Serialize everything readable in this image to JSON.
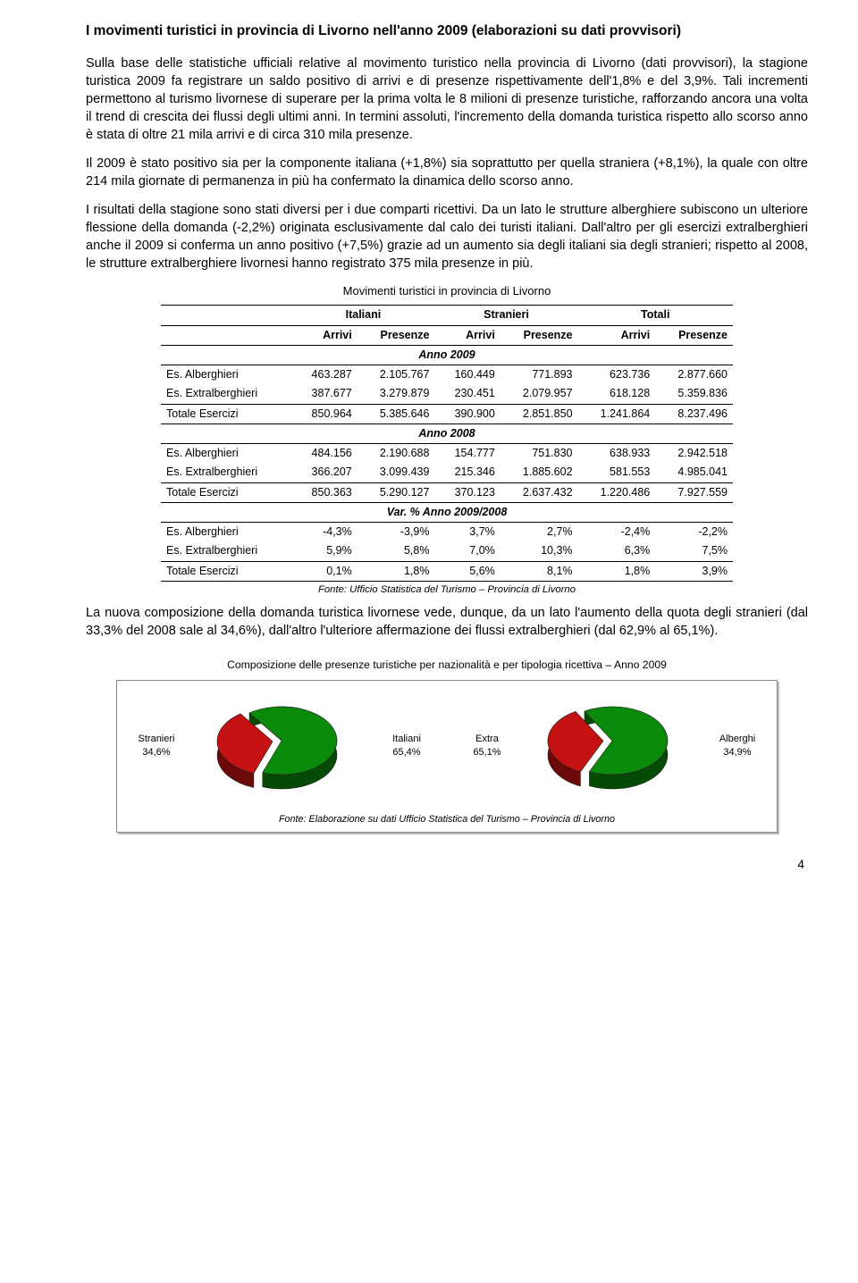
{
  "title": "I movimenti turistici in provincia di Livorno nell'anno 2009 (elaborazioni su dati provvisori)",
  "paragraphs": {
    "p1": "Sulla base delle statistiche ufficiali relative al movimento turistico nella provincia di Livorno (dati provvisori), la stagione turistica 2009 fa registrare un saldo positivo di arrivi e di presenze rispettivamente dell'1,8% e del 3,9%. Tali incrementi permettono al turismo livornese di superare per la prima volta le 8 milioni di presenze turistiche, rafforzando ancora una volta il trend di crescita dei flussi degli ultimi anni. In termini assoluti, l'incremento della domanda turistica rispetto allo scorso anno è stata di oltre 21 mila arrivi e di circa 310 mila presenze.",
    "p2": "Il 2009 è stato positivo sia per la componente italiana (+1,8%) sia soprattutto per quella straniera (+8,1%), la quale con oltre 214 mila giornate di permanenza in più ha confermato la dinamica dello scorso anno.",
    "p3": "I risultati della stagione sono stati diversi per i due comparti ricettivi. Da un lato le strutture alberghiere subiscono un ulteriore flessione della domanda (-2,2%) originata esclusivamente dal calo dei turisti italiani. Dall'altro per gli esercizi extralberghieri anche il 2009 si conferma un anno positivo (+7,5%) grazie ad un aumento sia degli italiani sia degli stranieri; rispetto al 2008, le strutture extralberghiere livornesi hanno registrato 375 mila presenze in più.",
    "p4": "La nuova composizione della domanda turistica livornese vede, dunque, da un lato l'aumento della quota degli stranieri (dal 33,3% del 2008 sale al 34,6%), dall'altro l'ulteriore affermazione dei flussi extralberghieri (dal 62,9% al 65,1%)."
  },
  "table": {
    "title": "Movimenti turistici in provincia di Livorno",
    "group_headers": [
      "Italiani",
      "Stranieri",
      "Totali"
    ],
    "col_headers": [
      "Arrivi",
      "Presenze",
      "Arrivi",
      "Presenze",
      "Arrivi",
      "Presenze"
    ],
    "sections": [
      {
        "label": "Anno 2009",
        "rows": [
          {
            "name": "Es. Alberghieri",
            "cells": [
              "463.287",
              "2.105.767",
              "160.449",
              "771.893",
              "623.736",
              "2.877.660"
            ]
          },
          {
            "name": "Es. Extralberghieri",
            "cells": [
              "387.677",
              "3.279.879",
              "230.451",
              "2.079.957",
              "618.128",
              "5.359.836"
            ]
          },
          {
            "name": "Totale Esercizi",
            "cells": [
              "850.964",
              "5.385.646",
              "390.900",
              "2.851.850",
              "1.241.864",
              "8.237.496"
            ],
            "total": true
          }
        ]
      },
      {
        "label": "Anno 2008",
        "rows": [
          {
            "name": "Es. Alberghieri",
            "cells": [
              "484.156",
              "2.190.688",
              "154.777",
              "751.830",
              "638.933",
              "2.942.518"
            ]
          },
          {
            "name": "Es. Extralberghieri",
            "cells": [
              "366.207",
              "3.099.439",
              "215.346",
              "1.885.602",
              "581.553",
              "4.985.041"
            ]
          },
          {
            "name": "Totale Esercizi",
            "cells": [
              "850.363",
              "5.290.127",
              "370.123",
              "2.637.432",
              "1.220.486",
              "7.927.559"
            ],
            "total": true
          }
        ]
      },
      {
        "label": "Var. % Anno 2009/2008",
        "rows": [
          {
            "name": "Es. Alberghieri",
            "cells": [
              "-4,3%",
              "-3,9%",
              "3,7%",
              "2,7%",
              "-2,4%",
              "-2,2%"
            ]
          },
          {
            "name": "Es. Extralberghieri",
            "cells": [
              "5,9%",
              "5,8%",
              "7,0%",
              "10,3%",
              "6,3%",
              "7,5%"
            ]
          },
          {
            "name": "Totale Esercizi",
            "cells": [
              "0,1%",
              "1,8%",
              "5,6%",
              "8,1%",
              "1,8%",
              "3,9%"
            ],
            "total": true
          }
        ]
      }
    ],
    "source": "Fonte: Ufficio Statistica del Turismo – Provincia di Livorno"
  },
  "pies": {
    "caption": "Composizione delle presenze turistiche per nazionalità e per tipologia ricettiva – Anno 2009",
    "left": {
      "slices": [
        {
          "label": "Stranieri",
          "value": "34,6%",
          "pct": 34.6,
          "color": "#c41212"
        },
        {
          "label": "Italiani",
          "value": "65,4%",
          "pct": 65.4,
          "color": "#0a8a0a"
        }
      ]
    },
    "right": {
      "slices": [
        {
          "label": "Extra",
          "value": "65,1%",
          "pct": 65.1,
          "color": "#0a8a0a"
        },
        {
          "label": "Alberghi",
          "value": "34,9%",
          "pct": 34.9,
          "color": "#c41212"
        }
      ]
    },
    "source": "Fonte: Elaborazione su dati Ufficio Statistica del Turismo – Provincia di Livorno"
  },
  "page_number": "4"
}
